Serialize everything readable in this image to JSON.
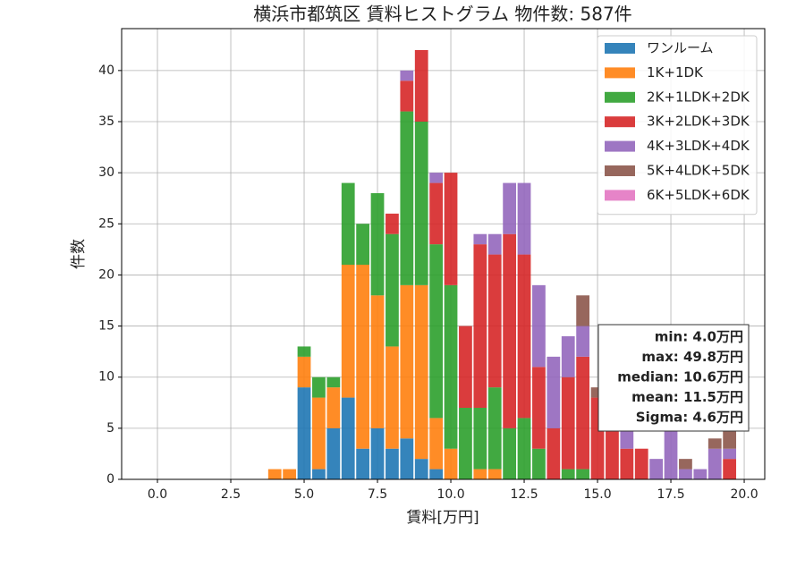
{
  "chart_data": {
    "type": "histogram",
    "title": "横浜市都筑区 賃料ヒストグラム 物件数: 587件",
    "xlabel": "賃料[万円]",
    "ylabel": "件数",
    "bins": [
      3.75,
      4.25,
      4.75,
      5.25,
      5.75,
      6.25,
      6.75,
      7.25,
      7.75,
      8.25,
      8.75,
      9.25,
      9.75,
      10.25,
      10.75,
      11.25,
      11.75,
      12.25,
      12.75,
      13.25,
      13.75,
      14.25,
      14.75,
      15.25,
      15.75,
      16.25,
      16.75,
      17.25,
      17.75,
      18.25,
      18.75,
      19.25,
      19.75
    ],
    "series": [
      {
        "name": "ワンルーム",
        "color": "#1f77b4",
        "values": [
          0,
          0,
          9,
          1,
          5,
          8,
          3,
          5,
          3,
          4,
          2,
          1,
          0,
          0,
          0,
          0,
          0,
          0,
          0,
          0,
          0,
          0,
          0,
          0,
          0,
          0,
          0,
          0,
          0,
          0,
          0,
          0
        ]
      },
      {
        "name": "1K+1DK",
        "color": "#ff7f0e",
        "values": [
          1,
          1,
          3,
          7,
          4,
          13,
          18,
          13,
          10,
          15,
          17,
          5,
          3,
          0,
          1,
          1,
          0,
          0,
          0,
          0,
          0,
          0,
          0,
          0,
          0,
          0,
          0,
          0,
          0,
          0,
          0,
          0
        ]
      },
      {
        "name": "2K+1LDK+2DK",
        "color": "#2ca02c",
        "values": [
          0,
          0,
          1,
          2,
          1,
          8,
          4,
          10,
          11,
          17,
          16,
          17,
          16,
          7,
          6,
          8,
          5,
          6,
          3,
          0,
          1,
          1,
          0,
          0,
          0,
          0,
          0,
          0,
          0,
          0,
          0,
          0
        ]
      },
      {
        "name": "3K+2LDK+3DK",
        "color": "#d62728",
        "values": [
          0,
          0,
          0,
          0,
          0,
          0,
          0,
          0,
          2,
          3,
          7,
          6,
          11,
          8,
          16,
          13,
          19,
          16,
          8,
          5,
          9,
          11,
          8,
          6,
          3,
          3,
          0,
          0,
          0,
          0,
          0,
          2
        ]
      },
      {
        "name": "4K+3LDK+4DK",
        "color": "#9467bd",
        "values": [
          0,
          0,
          0,
          0,
          0,
          0,
          0,
          0,
          0,
          1,
          0,
          1,
          0,
          0,
          1,
          2,
          5,
          7,
          8,
          7,
          4,
          3,
          0,
          1,
          2,
          0,
          2,
          5,
          1,
          1,
          3,
          1
        ]
      },
      {
        "name": "5K+4LDK+5DK",
        "color": "#8c564b",
        "values": [
          0,
          0,
          0,
          0,
          0,
          0,
          0,
          0,
          0,
          0,
          0,
          0,
          0,
          0,
          0,
          0,
          0,
          0,
          0,
          0,
          0,
          3,
          1,
          0,
          0,
          0,
          0,
          0,
          1,
          0,
          1,
          2
        ]
      },
      {
        "name": "6K+5LDK+6DK",
        "color": "#e377c2",
        "values": [
          0,
          0,
          0,
          0,
          0,
          0,
          0,
          0,
          0,
          0,
          0,
          0,
          0,
          0,
          0,
          0,
          0,
          0,
          0,
          0,
          0,
          0,
          0,
          0,
          0,
          0,
          0,
          0,
          0,
          0,
          0,
          0
        ]
      }
    ],
    "xlim": [
      -1.22,
      20.7
    ],
    "ylim": [
      0,
      44.1
    ],
    "xticks": [
      {
        "value": 0,
        "label": "0.0"
      },
      {
        "value": 2.5,
        "label": "2.5"
      },
      {
        "value": 5,
        "label": "5.0"
      },
      {
        "value": 7.5,
        "label": "7.5"
      },
      {
        "value": 10,
        "label": "10.0"
      },
      {
        "value": 12.5,
        "label": "12.5"
      },
      {
        "value": 15,
        "label": "15.0"
      },
      {
        "value": 17.5,
        "label": "17.5"
      },
      {
        "value": 20,
        "label": "20.0"
      }
    ],
    "yticks": [
      0,
      5,
      10,
      15,
      20,
      25,
      30,
      35,
      40
    ],
    "grid": true,
    "legend": "upper right",
    "annotation": [
      "min: 4.0万円",
      "max: 49.8万円",
      "median: 10.6万円",
      "mean: 11.5万円",
      "Sigma: 4.6万円"
    ]
  }
}
